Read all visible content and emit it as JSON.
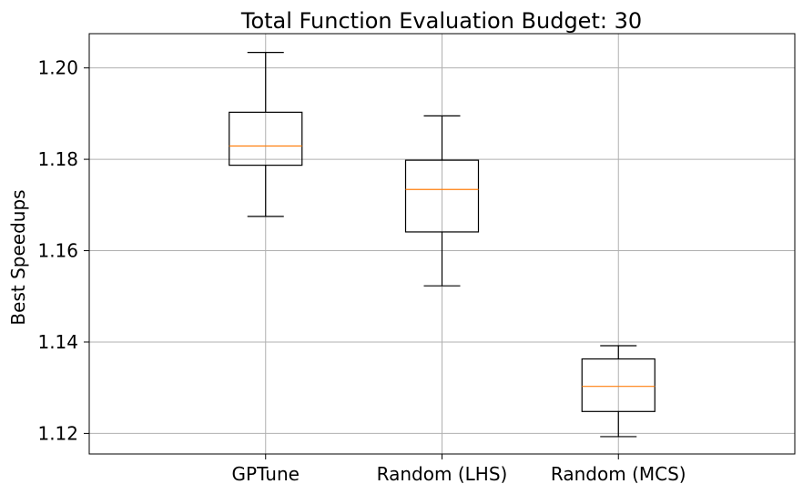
{
  "chart_data": {
    "type": "box",
    "title": "Total Function Evaluation Budget: 30",
    "xlabel": "",
    "ylabel": "Best Speedups",
    "ylim": [
      1.1155,
      1.2075
    ],
    "yticks": [
      1.12,
      1.14,
      1.16,
      1.18,
      1.2
    ],
    "ytick_labels": [
      "1.12",
      "1.14",
      "1.16",
      "1.18",
      "1.20"
    ],
    "grid": true,
    "categories": [
      "GPTune",
      "Random (LHS)",
      "Random (MCS)"
    ],
    "boxes": [
      {
        "name": "GPTune",
        "whisker_low": 1.1675,
        "q1": 1.1787,
        "median": 1.1829,
        "q3": 1.1903,
        "whisker_high": 1.2034
      },
      {
        "name": "Random (LHS)",
        "whisker_low": 1.1523,
        "q1": 1.1641,
        "median": 1.1734,
        "q3": 1.1798,
        "whisker_high": 1.1895
      },
      {
        "name": "Random (MCS)",
        "whisker_low": 1.1193,
        "q1": 1.1248,
        "median": 1.1303,
        "q3": 1.1363,
        "whisker_high": 1.1392
      }
    ],
    "colors": {
      "box": "#000000",
      "median": "#ff7f0e",
      "grid": "#b0b0b0"
    }
  }
}
